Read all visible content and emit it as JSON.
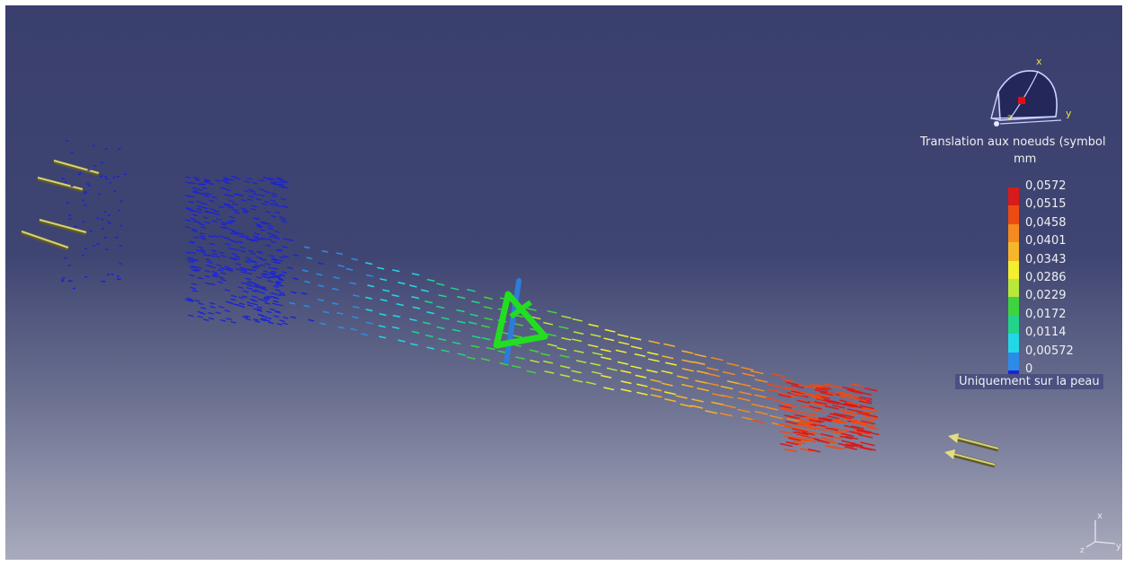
{
  "legend": {
    "title": "Translation aux noeuds (symbol",
    "unit": "mm",
    "footer": "Uniquement sur la peau",
    "entries": [
      {
        "label": "0,0572",
        "color": "#d81a1a"
      },
      {
        "label": "0,0515",
        "color": "#f04a14"
      },
      {
        "label": "0,0458",
        "color": "#f58a20"
      },
      {
        "label": "0,0401",
        "color": "#f7b52a"
      },
      {
        "label": "0,0343",
        "color": "#f2f030"
      },
      {
        "label": "0,0286",
        "color": "#b8e838"
      },
      {
        "label": "0,0229",
        "color": "#3fd43f"
      },
      {
        "label": "0,0172",
        "color": "#22d48a"
      },
      {
        "label": "0,0114",
        "color": "#23d8e6"
      },
      {
        "label": "0,00572",
        "color": "#2d8be8"
      },
      {
        "label": "0",
        "color": "#1b24d6"
      }
    ]
  },
  "compass_labels": {
    "x": "x",
    "y": "y",
    "z": "z"
  },
  "axis_labels": {
    "x": "x",
    "y": "y",
    "z": "z"
  }
}
